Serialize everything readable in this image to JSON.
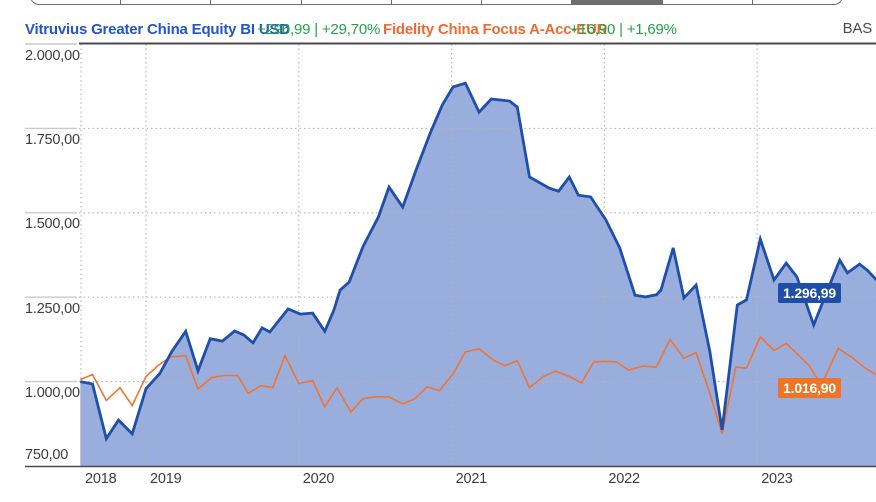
{
  "toolbar": {
    "segment_count": 9,
    "active_segment_index": 6,
    "description": "period selector (cropped at top edge)"
  },
  "legend": {
    "series1_name": "Vitruvius Greater China Equity BI USD",
    "series1_change": "+296,99 | +29,70%",
    "series2_name": "Fidelity China Focus A-Acc-EUR",
    "series2_change": "+16,90 | +1,69%",
    "right_label": "BAS"
  },
  "badges": {
    "series1_value": "1.296,99",
    "series2_value": "1.016,90"
  },
  "colors": {
    "series1_line": "#1e4faa",
    "series1_fill": "#9aaede",
    "series1_badge": "#1d4fa8",
    "series2_line": "#ee7533",
    "series2_badge": "#ee7526",
    "grid": "#b4b4b4",
    "axis_dark": "#4a4a4a",
    "tick_light": "#c9c9c9",
    "axis_text": "#3d3d3d",
    "positive_green": "#23a148"
  },
  "chart_data": {
    "type": "area",
    "title": "",
    "xlabel": "",
    "ylabel": "",
    "grid": true,
    "legend_position": "top",
    "x_axis": {
      "tick_labels": [
        "2018",
        "2019",
        "2020",
        "2021",
        "2022",
        "2023"
      ],
      "tick_values": [
        2018,
        2019,
        2020,
        2021,
        2022,
        2023
      ],
      "range": [
        2018.57,
        2023.79
      ]
    },
    "y_axis": {
      "tick_labels": [
        "2.000,00",
        "1.750,00",
        "1.500,00",
        "1.250,00",
        "1.000,00",
        "750,00"
      ],
      "tick_values": [
        2000,
        1750,
        1500,
        1250,
        1000,
        750
      ],
      "range": [
        750,
        2000
      ]
    },
    "series": [
      {
        "name": "Vitruvius Greater China Equity BI USD",
        "style": "area",
        "last_value": 1296.99,
        "points": [
          [
            2018.57,
            1000
          ],
          [
            2018.65,
            993
          ],
          [
            2018.74,
            831
          ],
          [
            2018.82,
            886
          ],
          [
            2018.91,
            845
          ],
          [
            2019.0,
            979
          ],
          [
            2019.09,
            1024
          ],
          [
            2019.17,
            1090
          ],
          [
            2019.26,
            1149
          ],
          [
            2019.34,
            1032
          ],
          [
            2019.42,
            1127
          ],
          [
            2019.5,
            1120
          ],
          [
            2019.58,
            1150
          ],
          [
            2019.64,
            1138
          ],
          [
            2019.7,
            1115
          ],
          [
            2019.76,
            1159
          ],
          [
            2019.81,
            1147
          ],
          [
            2019.93,
            1215
          ],
          [
            2020.01,
            1200
          ],
          [
            2020.09,
            1203
          ],
          [
            2020.17,
            1149
          ],
          [
            2020.23,
            1212
          ],
          [
            2020.27,
            1271
          ],
          [
            2020.33,
            1295
          ],
          [
            2020.42,
            1400
          ],
          [
            2020.52,
            1487
          ],
          [
            2020.59,
            1576
          ],
          [
            2020.68,
            1517
          ],
          [
            2020.77,
            1630
          ],
          [
            2020.86,
            1736
          ],
          [
            2020.94,
            1820
          ],
          [
            2021.01,
            1873
          ],
          [
            2021.09,
            1884
          ],
          [
            2021.18,
            1798
          ],
          [
            2021.26,
            1837
          ],
          [
            2021.38,
            1831
          ],
          [
            2021.43,
            1813
          ],
          [
            2021.51,
            1606
          ],
          [
            2021.64,
            1573
          ],
          [
            2021.7,
            1564
          ],
          [
            2021.77,
            1606
          ],
          [
            2021.83,
            1552
          ],
          [
            2021.91,
            1547
          ],
          [
            2022.01,
            1479
          ],
          [
            2022.1,
            1396
          ],
          [
            2022.2,
            1256
          ],
          [
            2022.27,
            1251
          ],
          [
            2022.34,
            1257
          ],
          [
            2022.37,
            1271
          ],
          [
            2022.45,
            1396
          ],
          [
            2022.52,
            1248
          ],
          [
            2022.6,
            1286
          ],
          [
            2022.69,
            1090
          ],
          [
            2022.77,
            857
          ],
          [
            2022.87,
            1227
          ],
          [
            2022.93,
            1242
          ],
          [
            2023.02,
            1422
          ],
          [
            2023.11,
            1301
          ],
          [
            2023.19,
            1351
          ],
          [
            2023.26,
            1310
          ],
          [
            2023.37,
            1168
          ],
          [
            2023.46,
            1270
          ],
          [
            2023.54,
            1360
          ],
          [
            2023.59,
            1322
          ],
          [
            2023.67,
            1348
          ],
          [
            2023.72,
            1330
          ],
          [
            2023.79,
            1296.99
          ]
        ]
      },
      {
        "name": "Fidelity China Focus A-Acc-EUR",
        "style": "line",
        "last_value": 1016.9,
        "points": [
          [
            2018.57,
            1006
          ],
          [
            2018.65,
            1021
          ],
          [
            2018.74,
            944
          ],
          [
            2018.83,
            982
          ],
          [
            2018.91,
            929
          ],
          [
            2019.0,
            1015
          ],
          [
            2019.08,
            1048
          ],
          [
            2019.16,
            1073
          ],
          [
            2019.26,
            1077
          ],
          [
            2019.34,
            978
          ],
          [
            2019.43,
            1012
          ],
          [
            2019.51,
            1018
          ],
          [
            2019.6,
            1018
          ],
          [
            2019.67,
            965
          ],
          [
            2019.75,
            988
          ],
          [
            2019.83,
            982
          ],
          [
            2019.91,
            1077
          ],
          [
            2020.0,
            994
          ],
          [
            2020.09,
            1003
          ],
          [
            2020.17,
            925
          ],
          [
            2020.25,
            982
          ],
          [
            2020.34,
            910
          ],
          [
            2020.42,
            949
          ],
          [
            2020.5,
            955
          ],
          [
            2020.59,
            955
          ],
          [
            2020.68,
            934
          ],
          [
            2020.76,
            949
          ],
          [
            2020.84,
            985
          ],
          [
            2020.92,
            973
          ],
          [
            2021.01,
            1023
          ],
          [
            2021.09,
            1088
          ],
          [
            2021.18,
            1097
          ],
          [
            2021.28,
            1062
          ],
          [
            2021.35,
            1047
          ],
          [
            2021.43,
            1062
          ],
          [
            2021.51,
            982
          ],
          [
            2021.6,
            1015
          ],
          [
            2021.68,
            1031
          ],
          [
            2021.77,
            1015
          ],
          [
            2021.85,
            996
          ],
          [
            2021.93,
            1058
          ],
          [
            2022.0,
            1060
          ],
          [
            2022.08,
            1058
          ],
          [
            2022.16,
            1034
          ],
          [
            2022.25,
            1046
          ],
          [
            2022.34,
            1043
          ],
          [
            2022.43,
            1125
          ],
          [
            2022.52,
            1069
          ],
          [
            2022.6,
            1086
          ],
          [
            2022.69,
            965
          ],
          [
            2022.77,
            845
          ],
          [
            2022.86,
            1043
          ],
          [
            2022.93,
            1040
          ],
          [
            2023.02,
            1133
          ],
          [
            2023.11,
            1092
          ],
          [
            2023.19,
            1113
          ],
          [
            2023.26,
            1083
          ],
          [
            2023.34,
            1047
          ],
          [
            2023.42,
            990
          ],
          [
            2023.53,
            1098
          ],
          [
            2023.62,
            1072
          ],
          [
            2023.7,
            1042
          ],
          [
            2023.79,
            1016.9
          ]
        ]
      }
    ]
  }
}
